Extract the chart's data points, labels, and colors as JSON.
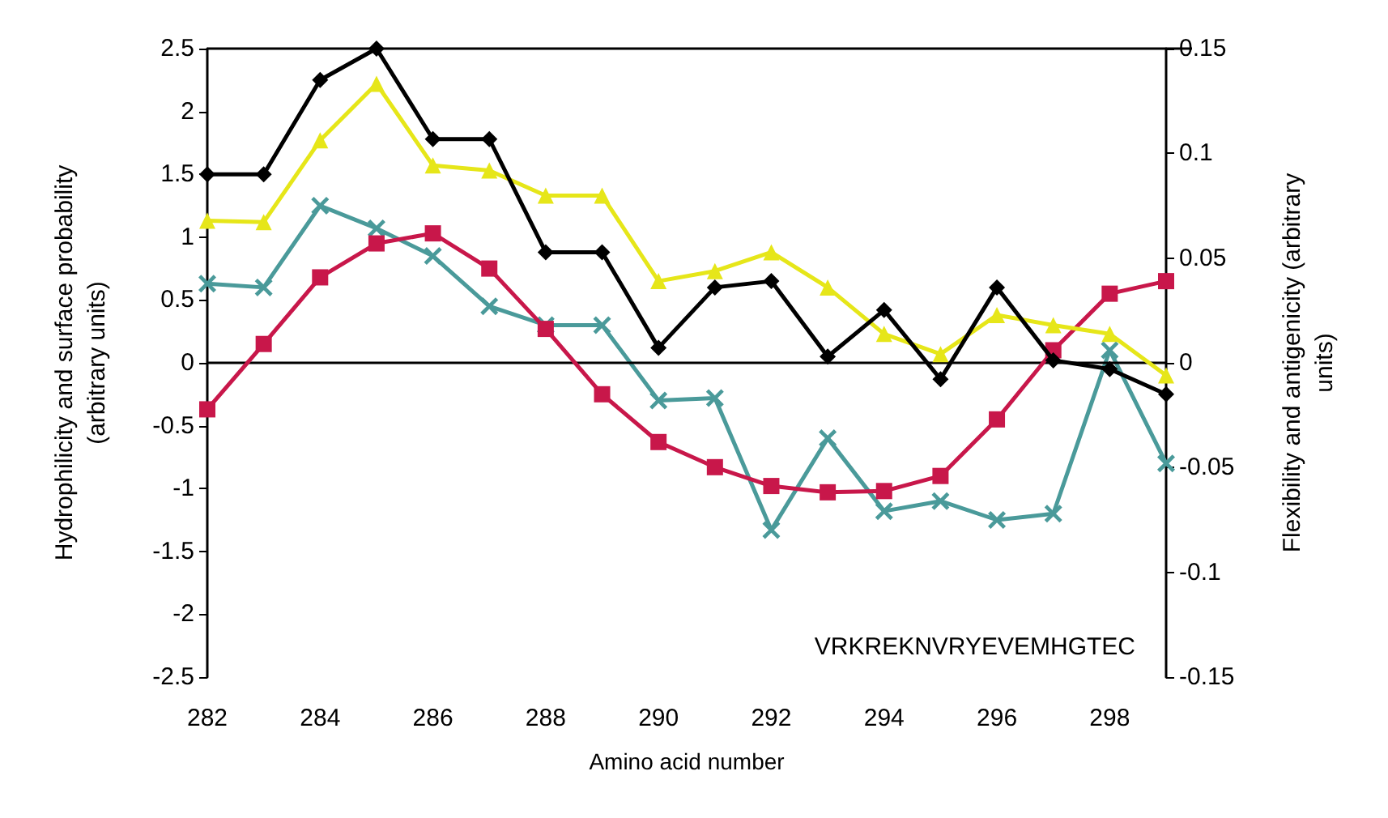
{
  "chart_data": {
    "type": "line",
    "xlabel": "Amino acid number",
    "ylabel": "Hydrophilicity and surface probability\n(arbitrary units)",
    "y2label": "Flexibility and antigenicity (arbitrary\nunits)",
    "x": [
      282,
      283,
      284,
      285,
      286,
      287,
      288,
      289,
      290,
      291,
      292,
      293,
      294,
      295,
      296,
      297,
      298,
      299
    ],
    "xlim": [
      282,
      299
    ],
    "xticks": [
      282,
      284,
      286,
      288,
      290,
      292,
      294,
      296,
      298
    ],
    "ylim": [
      -2.5,
      2.5
    ],
    "yticks": [
      -2.5,
      -2,
      -1.5,
      -1,
      -0.5,
      0,
      0.5,
      1,
      1.5,
      2,
      2.5
    ],
    "y2lim": [
      -0.15,
      0.15
    ],
    "y2ticks": [
      -0.15,
      -0.1,
      -0.05,
      0,
      0.05,
      0.1,
      0.15
    ],
    "series": [
      {
        "color": "#000000",
        "marker": "diamond",
        "values": [
          1.5,
          1.5,
          2.25,
          2.5,
          1.78,
          1.78,
          0.88,
          0.88,
          0.12,
          0.6,
          0.65,
          0.05,
          0.42,
          -0.13,
          0.6,
          0.02,
          -0.05,
          -0.25
        ]
      },
      {
        "color": "#e6e619",
        "marker": "triangle",
        "values": [
          1.13,
          1.12,
          1.77,
          2.22,
          1.57,
          1.53,
          1.33,
          1.33,
          0.65,
          0.73,
          0.88,
          0.6,
          0.23,
          0.07,
          0.38,
          0.3,
          0.23,
          -0.1
        ]
      },
      {
        "color": "#c8174a",
        "marker": "square",
        "values": [
          -0.37,
          0.15,
          0.68,
          0.95,
          1.03,
          0.75,
          0.27,
          -0.25,
          -0.63,
          -0.83,
          -0.98,
          -1.03,
          -1.02,
          -0.9,
          -0.45,
          0.1,
          0.55,
          0.65
        ]
      },
      {
        "color": "#4a9a9a",
        "marker": "cross",
        "values": [
          0.63,
          0.6,
          1.25,
          1.07,
          0.85,
          0.45,
          0.3,
          0.3,
          -0.3,
          -0.28,
          -1.33,
          -0.6,
          -1.18,
          -1.1,
          -1.25,
          -1.2,
          0.1,
          -0.8
        ]
      }
    ],
    "ref_lines": [
      {
        "axis": "y",
        "value": 0,
        "color": "#000000"
      }
    ],
    "annotations": [
      "VRKREKNVRYEVEMHGTEC"
    ],
    "grid": false,
    "line_style": "solid"
  }
}
